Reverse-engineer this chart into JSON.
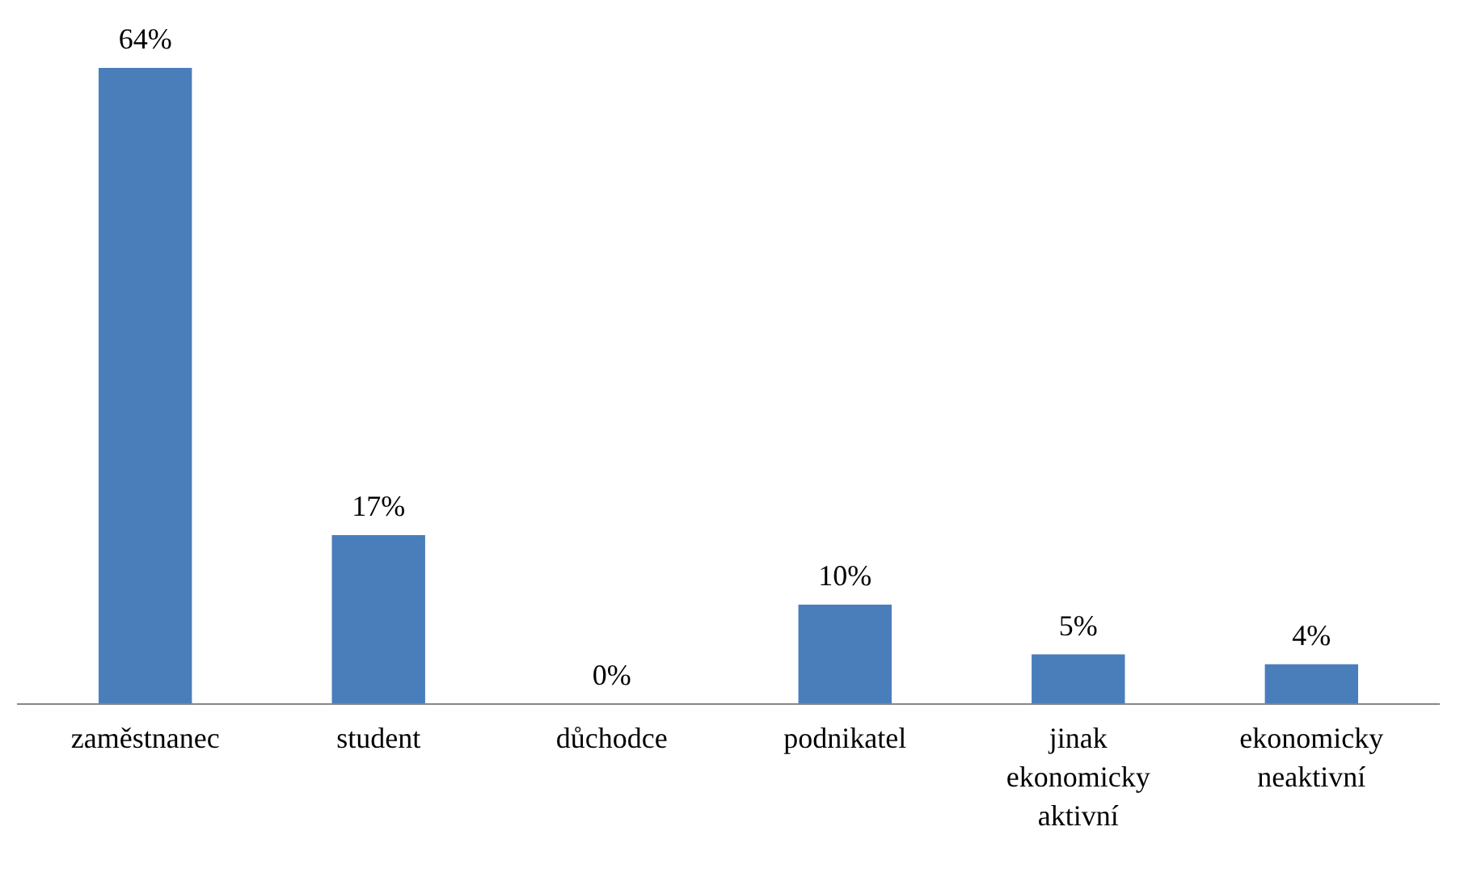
{
  "chart_data": {
    "type": "bar",
    "categories": [
      "zaměstnanec",
      "student",
      "důchodce",
      "podnikatel",
      "jinak ekonomicky aktivní",
      "ekonomicky neaktivní"
    ],
    "values": [
      64,
      17,
      0,
      10,
      5,
      4
    ],
    "color": "#4a7ebb",
    "value_labels": [
      "64%",
      "17%",
      "0%",
      "10%",
      "5%",
      "4%"
    ]
  }
}
